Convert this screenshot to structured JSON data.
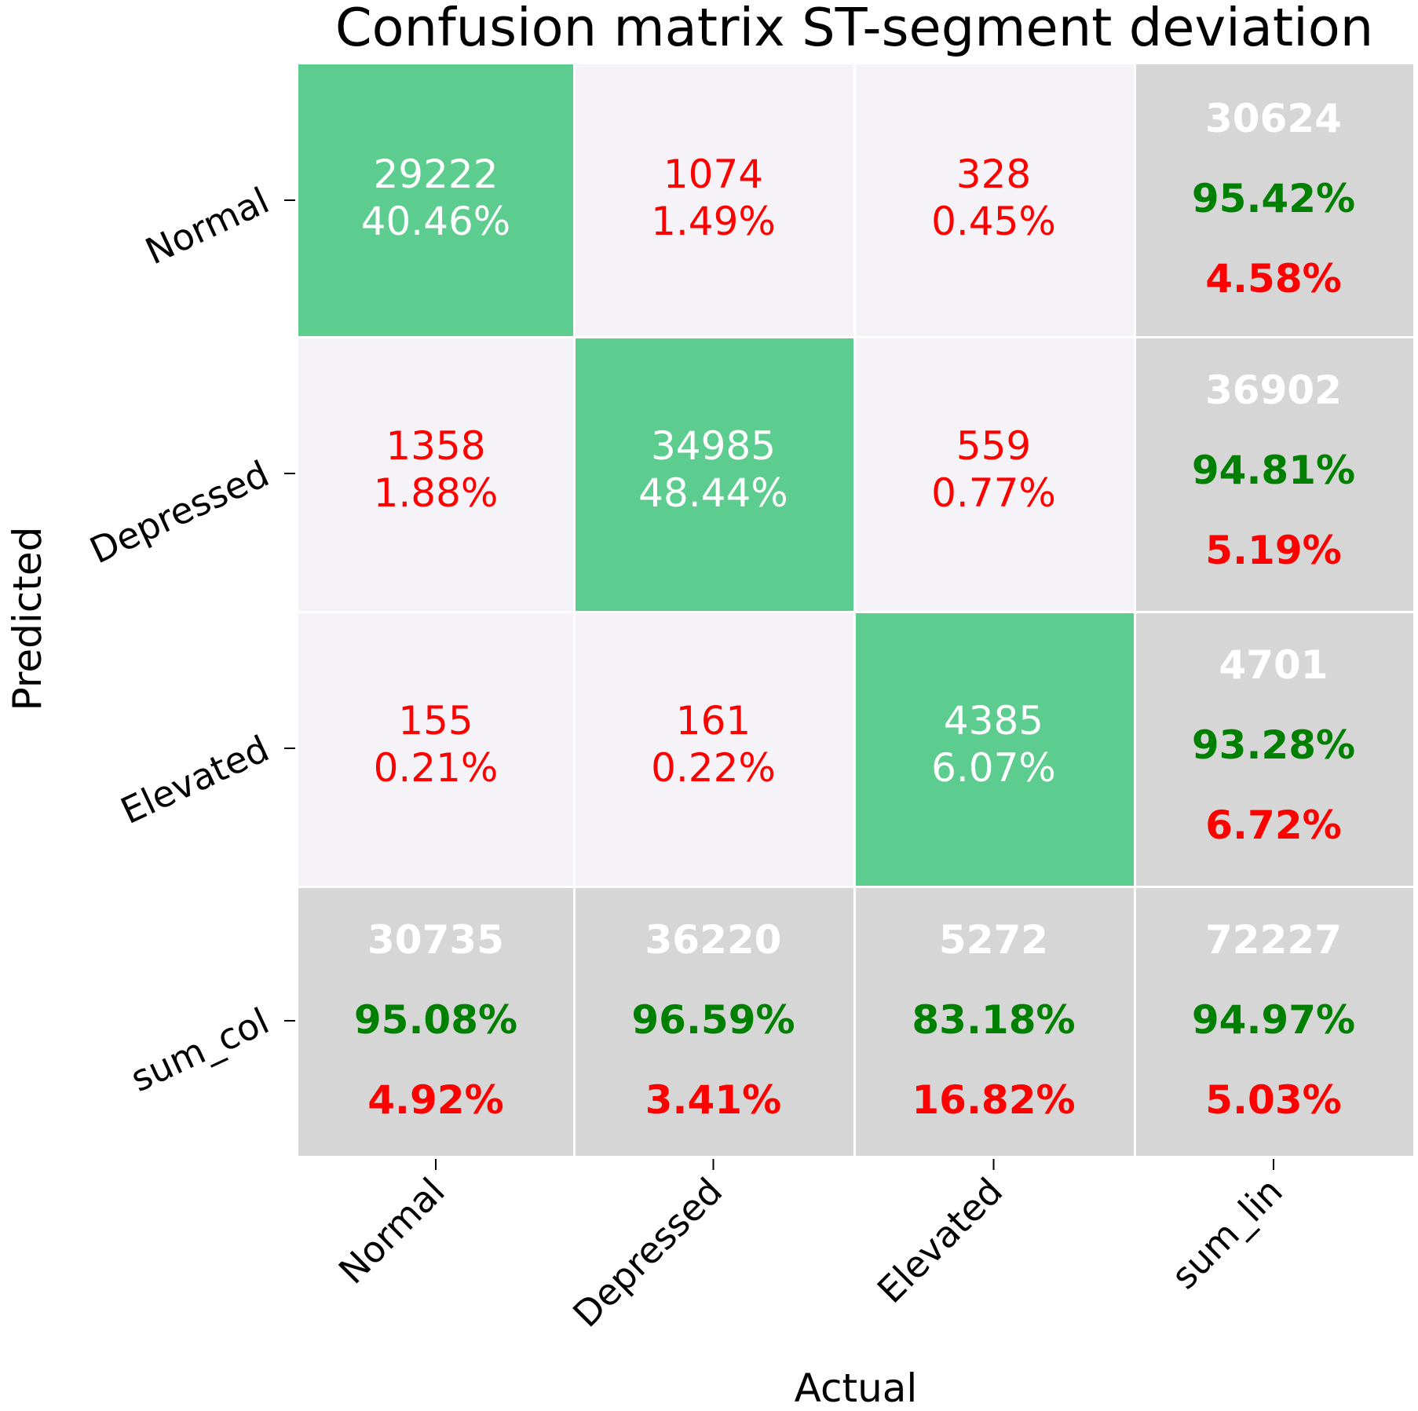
{
  "chart_data": {
    "type": "heatmap",
    "title": "Confusion matrix ST-segment deviation",
    "xlabel": "Actual",
    "ylabel": "Predicted",
    "x_categories": [
      "Normal",
      "Depressed",
      "Elevated",
      "sum_lin"
    ],
    "y_categories": [
      "Normal",
      "Depressed",
      "Elevated",
      "sum_col"
    ],
    "matrix": [
      [
        {
          "count": "29222",
          "percent": "40.46%"
        },
        {
          "count": "1074",
          "percent": "1.49%"
        },
        {
          "count": "328",
          "percent": "0.45%"
        }
      ],
      [
        {
          "count": "1358",
          "percent": "1.88%"
        },
        {
          "count": "34985",
          "percent": "48.44%"
        },
        {
          "count": "559",
          "percent": "0.77%"
        }
      ],
      [
        {
          "count": "155",
          "percent": "0.21%"
        },
        {
          "count": "161",
          "percent": "0.22%"
        },
        {
          "count": "4385",
          "percent": "6.07%"
        }
      ]
    ],
    "row_totals": [
      {
        "total": "30624",
        "correct": "95.42%",
        "error": "4.58%"
      },
      {
        "total": "36902",
        "correct": "94.81%",
        "error": "5.19%"
      },
      {
        "total": "4701",
        "correct": "93.28%",
        "error": "6.72%"
      }
    ],
    "col_totals": [
      {
        "total": "30735",
        "correct": "95.08%",
        "error": "4.92%"
      },
      {
        "total": "36220",
        "correct": "96.59%",
        "error": "3.41%"
      },
      {
        "total": "5272",
        "correct": "83.18%",
        "error": "16.82%"
      }
    ],
    "grand_total": {
      "total": "72227",
      "correct": "94.97%",
      "error": "5.03%"
    },
    "colors": {
      "diagonal": "#5ccc8f",
      "off_diagonal": "#f5f3f8",
      "summary": "#d6d6d6",
      "diag_text": "#ffffff",
      "off_diag_text": "#ff0000",
      "summary_total_text": "#ffffff",
      "summary_correct_text": "#008000",
      "summary_error_text": "#ff0000"
    }
  }
}
